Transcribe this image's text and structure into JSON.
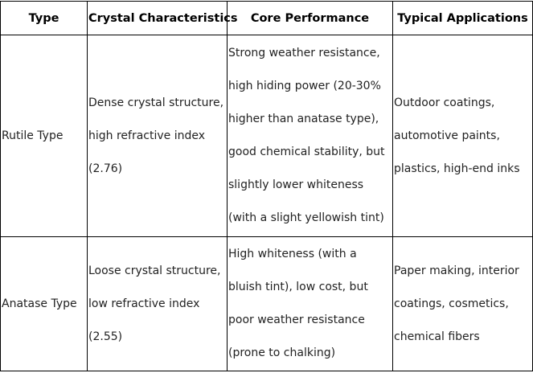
{
  "table": {
    "headers": [
      "Type",
      "Crystal Characteristics",
      "Core Performance",
      "Typical Applications"
    ],
    "rows": [
      [
        "Rutile Type",
        "Dense crystal structure, high refractive index (2.76)",
        "Strong weather resistance, high hiding power (20-30% higher than anatase type), good chemical stability, but slightly lower whiteness (with a slight yellowish tint)",
        "Outdoor coatings, automotive paints, plastics, high-end inks"
      ],
      [
        "Anatase Type",
        "Loose crystal structure, low refractive index (2.55)",
        "High whiteness (with a bluish tint), low cost, but poor weather resistance (prone to chalking)",
        "Paper making, interior coatings, cosmetics, chemical fibers"
      ]
    ]
  }
}
